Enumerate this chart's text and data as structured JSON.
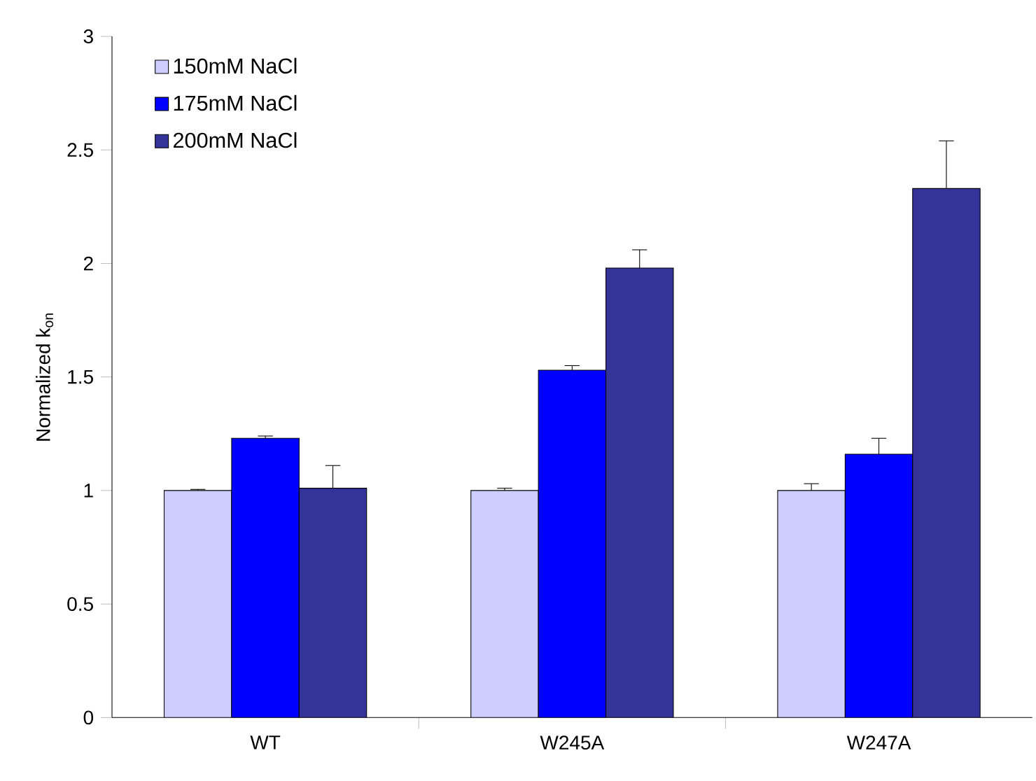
{
  "chart_data": {
    "type": "bar",
    "ylabel": "Normalized k$_{on}$",
    "categories": [
      "WT",
      "W245A",
      "W247A"
    ],
    "series": [
      {
        "name": "150mM NaCl",
        "color": "#ccccff",
        "values": [
          1.0,
          1.0,
          1.0
        ],
        "errors": [
          [
            1.0,
            1.005
          ],
          [
            1.0,
            1.01
          ],
          [
            1.0,
            1.03
          ]
        ]
      },
      {
        "name": "175mM NaCl",
        "color": "#0000ff",
        "values": [
          1.23,
          1.53,
          1.16
        ],
        "errors": [
          [
            1.23,
            1.24
          ],
          [
            1.53,
            1.55
          ],
          [
            1.16,
            1.23
          ]
        ]
      },
      {
        "name": "200mM NaCl",
        "color": "#333399",
        "values": [
          1.01,
          1.98,
          2.33
        ],
        "errors": [
          [
            1.01,
            1.11
          ],
          [
            1.98,
            2.06
          ],
          [
            2.33,
            2.54
          ]
        ]
      }
    ],
    "ylim": [
      0,
      3
    ],
    "yticks": [
      0,
      0.5,
      1,
      1.5,
      2,
      2.5,
      3
    ],
    "grid": false,
    "legend": "top left"
  }
}
